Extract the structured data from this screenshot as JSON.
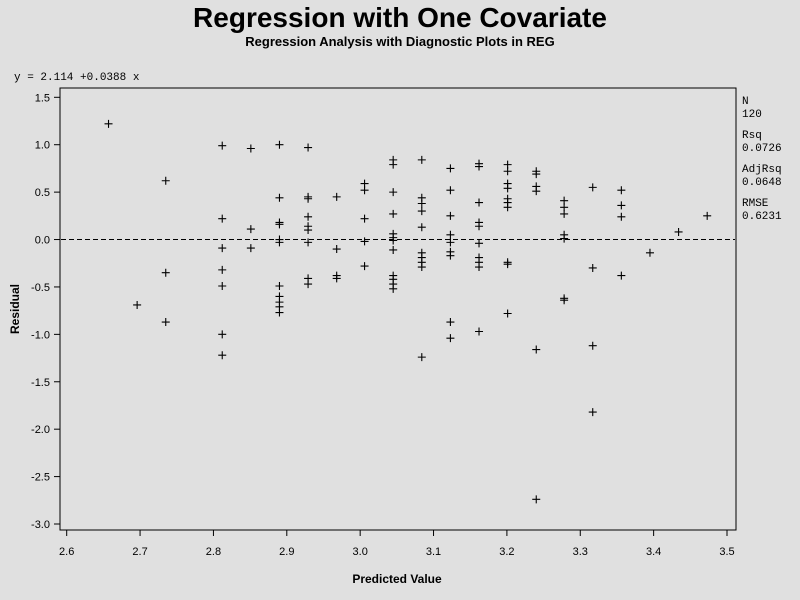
{
  "title": "Regression with One Covariate",
  "subtitle": "Regression Analysis with Diagnostic Plots in REG",
  "equation": "y = 2.114 +0.0388 x",
  "stats": [
    {
      "label": "N",
      "value": "120"
    },
    {
      "label": "Rsq",
      "value": "0.0726"
    },
    {
      "label": "AdjRsq",
      "value": "0.0648"
    },
    {
      "label": "RMSE",
      "value": "0.6231"
    }
  ],
  "chart_data": {
    "type": "scatter",
    "xlabel": "Predicted Value",
    "ylabel": "Residual",
    "xlim": [
      2.6,
      3.5
    ],
    "ylim": [
      -3.0,
      1.5
    ],
    "xticks": [
      "2.6",
      "2.7",
      "2.8",
      "2.9",
      "3.0",
      "3.1",
      "3.2",
      "3.3",
      "3.4",
      "3.5"
    ],
    "yticks": [
      "1.5",
      "1.0",
      "0.5",
      "0.0",
      "-0.5",
      "-1.0",
      "-1.5",
      "-2.0",
      "-2.5",
      "-3.0"
    ],
    "reference_line": 0.0,
    "marker": "plus",
    "points": [
      [
        2.657,
        1.22
      ],
      [
        2.696,
        -0.69
      ],
      [
        2.735,
        0.62
      ],
      [
        2.735,
        -0.35
      ],
      [
        2.735,
        -0.87
      ],
      [
        2.812,
        0.99
      ],
      [
        2.812,
        0.22
      ],
      [
        2.812,
        -0.09
      ],
      [
        2.812,
        -0.32
      ],
      [
        2.812,
        -0.49
      ],
      [
        2.812,
        -1.0
      ],
      [
        2.812,
        -1.22
      ],
      [
        2.851,
        0.96
      ],
      [
        2.851,
        0.11
      ],
      [
        2.851,
        -0.09
      ],
      [
        2.89,
        1.0
      ],
      [
        2.89,
        0.44
      ],
      [
        2.89,
        0.18
      ],
      [
        2.89,
        0.16
      ],
      [
        2.89,
        0.0
      ],
      [
        2.89,
        -0.03
      ],
      [
        2.89,
        -0.49
      ],
      [
        2.89,
        -0.6
      ],
      [
        2.89,
        -0.66
      ],
      [
        2.89,
        -0.71
      ],
      [
        2.89,
        -0.77
      ],
      [
        2.929,
        0.97
      ],
      [
        2.929,
        0.45
      ],
      [
        2.929,
        0.43
      ],
      [
        2.929,
        0.24
      ],
      [
        2.929,
        0.14
      ],
      [
        2.929,
        0.1
      ],
      [
        2.929,
        -0.03
      ],
      [
        2.929,
        -0.41
      ],
      [
        2.929,
        -0.47
      ],
      [
        2.968,
        0.45
      ],
      [
        2.968,
        -0.1
      ],
      [
        2.968,
        -0.38
      ],
      [
        2.968,
        -0.41
      ],
      [
        3.006,
        0.59
      ],
      [
        3.006,
        0.52
      ],
      [
        3.006,
        0.22
      ],
      [
        3.006,
        -0.02
      ],
      [
        3.006,
        -0.28
      ],
      [
        3.045,
        0.84
      ],
      [
        3.045,
        0.79
      ],
      [
        3.045,
        0.5
      ],
      [
        3.045,
        0.27
      ],
      [
        3.045,
        0.06
      ],
      [
        3.045,
        0.02
      ],
      [
        3.045,
        -0.01
      ],
      [
        3.045,
        -0.11
      ],
      [
        3.045,
        -0.38
      ],
      [
        3.045,
        -0.42
      ],
      [
        3.045,
        -0.47
      ],
      [
        3.045,
        -0.52
      ],
      [
        3.084,
        0.84
      ],
      [
        3.084,
        0.44
      ],
      [
        3.084,
        0.38
      ],
      [
        3.084,
        0.3
      ],
      [
        3.084,
        0.13
      ],
      [
        3.084,
        -0.14
      ],
      [
        3.084,
        -0.19
      ],
      [
        3.084,
        -0.24
      ],
      [
        3.084,
        -0.29
      ],
      [
        3.084,
        -1.24
      ],
      [
        3.123,
        0.75
      ],
      [
        3.123,
        0.52
      ],
      [
        3.123,
        0.25
      ],
      [
        3.123,
        0.05
      ],
      [
        3.123,
        -0.03
      ],
      [
        3.123,
        -0.13
      ],
      [
        3.123,
        -0.17
      ],
      [
        3.123,
        -0.87
      ],
      [
        3.123,
        -1.04
      ],
      [
        3.162,
        0.8
      ],
      [
        3.162,
        0.77
      ],
      [
        3.162,
        0.39
      ],
      [
        3.162,
        0.18
      ],
      [
        3.162,
        0.14
      ],
      [
        3.162,
        -0.04
      ],
      [
        3.162,
        -0.19
      ],
      [
        3.162,
        -0.24
      ],
      [
        3.162,
        -0.29
      ],
      [
        3.162,
        -0.97
      ],
      [
        3.201,
        0.79
      ],
      [
        3.201,
        0.72
      ],
      [
        3.201,
        0.59
      ],
      [
        3.201,
        0.54
      ],
      [
        3.201,
        0.43
      ],
      [
        3.201,
        0.39
      ],
      [
        3.201,
        0.34
      ],
      [
        3.201,
        -0.24
      ],
      [
        3.201,
        -0.26
      ],
      [
        3.201,
        -0.78
      ],
      [
        3.24,
        0.72
      ],
      [
        3.24,
        0.69
      ],
      [
        3.24,
        0.56
      ],
      [
        3.24,
        0.51
      ],
      [
        3.24,
        -1.16
      ],
      [
        3.24,
        -2.74
      ],
      [
        3.278,
        0.41
      ],
      [
        3.278,
        0.34
      ],
      [
        3.278,
        0.27
      ],
      [
        3.278,
        0.05
      ],
      [
        3.278,
        0.01
      ],
      [
        3.278,
        -0.62
      ],
      [
        3.278,
        -0.64
      ],
      [
        3.317,
        0.55
      ],
      [
        3.317,
        -0.3
      ],
      [
        3.317,
        -1.12
      ],
      [
        3.317,
        -1.82
      ],
      [
        3.356,
        0.52
      ],
      [
        3.356,
        0.36
      ],
      [
        3.356,
        0.24
      ],
      [
        3.356,
        -0.38
      ],
      [
        3.395,
        -0.14
      ],
      [
        3.434,
        0.08
      ],
      [
        3.473,
        0.25
      ]
    ]
  }
}
